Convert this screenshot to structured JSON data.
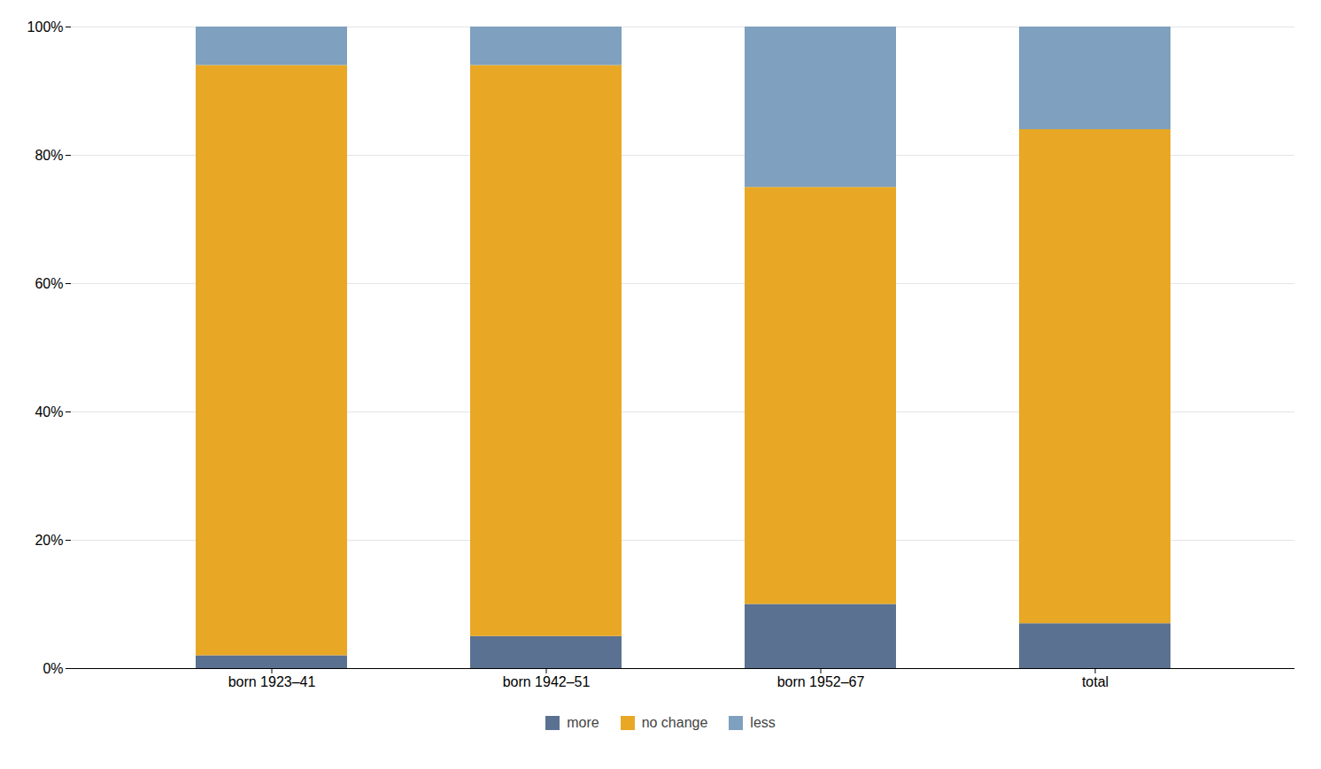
{
  "chart_data": {
    "type": "bar",
    "stacked": true,
    "categories": [
      "born 1923–41",
      "born 1942–51",
      "born 1952–67",
      "total"
    ],
    "series": [
      {
        "name": "more",
        "color": "#5a7191",
        "values": [
          2,
          5,
          10,
          7
        ]
      },
      {
        "name": "no change",
        "color": "#e8a825",
        "values": [
          92,
          89,
          65,
          77
        ]
      },
      {
        "name": "less",
        "color": "#7fa0be",
        "values": [
          6,
          6,
          25,
          16
        ]
      }
    ],
    "ylim": [
      0,
      100
    ],
    "yticks": [
      {
        "value": 0,
        "label": "0%"
      },
      {
        "value": 20,
        "label": "20%"
      },
      {
        "value": 40,
        "label": "40%"
      },
      {
        "value": 60,
        "label": "60%"
      },
      {
        "value": 80,
        "label": "80%"
      },
      {
        "value": 100,
        "label": "100%"
      }
    ],
    "grid": true,
    "legend": "bottom"
  }
}
